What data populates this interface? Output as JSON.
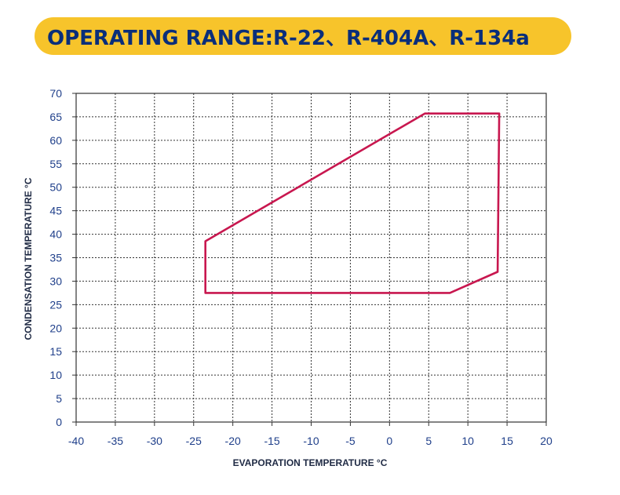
{
  "header": {
    "title": "OPERATING RANGE:R-22、R-404A、R-134a"
  },
  "chart_data": {
    "type": "area",
    "title": "OPERATING RANGE:R-22、R-404A、R-134a",
    "xlabel": "EVAPORATION TEMPERATURE °C",
    "ylabel": "CONDENSATION TEMPERATURE °C",
    "xlim": [
      -40,
      20
    ],
    "ylim": [
      0,
      70
    ],
    "x_ticks": [
      -40,
      -35,
      -30,
      -25,
      -20,
      -15,
      -10,
      -5,
      0,
      5,
      10,
      15,
      20
    ],
    "y_ticks": [
      0,
      5,
      10,
      15,
      20,
      25,
      30,
      35,
      40,
      45,
      50,
      55,
      60,
      65,
      70
    ],
    "grid": true,
    "series": [
      {
        "color": "#C8174F",
        "points": [
          {
            "x": -23.5,
            "y": 38.5
          },
          {
            "x": 4.5,
            "y": 65.7
          },
          {
            "x": 14,
            "y": 65.7
          },
          {
            "x": 13.8,
            "y": 32
          },
          {
            "x": 7.7,
            "y": 27.5
          },
          {
            "x": -23.5,
            "y": 27.5
          }
        ]
      }
    ]
  },
  "colors": {
    "accent": "#F7C42B",
    "title_text": "#0A2E7A",
    "tick_text": "#1F3F8A",
    "envelope": "#C8174F"
  }
}
